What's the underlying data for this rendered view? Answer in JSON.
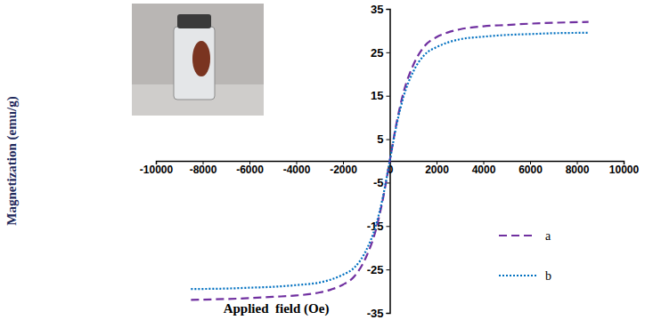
{
  "chart_data": {
    "type": "line",
    "x_label": "Applied  field (Oe)",
    "y_label": "Magnetization (emu/g)",
    "x": [
      -8500,
      -7000,
      -6000,
      -5000,
      -4000,
      -3000,
      -2500,
      -2000,
      -1500,
      -1000,
      -600,
      -300,
      0,
      300,
      600,
      1000,
      1500,
      2000,
      2500,
      3000,
      4000,
      5000,
      6000,
      7000,
      8500
    ],
    "series": [
      {
        "name": "a",
        "color": "#7030a0",
        "line_style": "dashed",
        "values": [
          -32,
          -31.8,
          -31.6,
          -31.3,
          -31,
          -30.3,
          -29.6,
          -28.5,
          -26.5,
          -22,
          -16,
          -9,
          0,
          9,
          16,
          22,
          26.5,
          28.5,
          29.6,
          30.3,
          31,
          31.3,
          31.6,
          31.8,
          32
        ]
      },
      {
        "name": "b",
        "color": "#0070c0",
        "line_style": "dotted",
        "values": [
          -29.5,
          -29.4,
          -29.2,
          -29,
          -28.6,
          -28,
          -27.3,
          -26.2,
          -24.5,
          -20.5,
          -15,
          -8.5,
          0,
          8.5,
          15,
          20.5,
          24.5,
          26.2,
          27.3,
          28,
          28.6,
          29,
          29.2,
          29.4,
          29.5
        ]
      }
    ],
    "xlim": [
      -10000,
      10000
    ],
    "xticks": [
      -10000,
      -8000,
      -6000,
      -4000,
      -2000,
      0,
      2000,
      4000,
      6000,
      8000,
      10000
    ],
    "ylim": [
      -35,
      35
    ],
    "yticks": [
      -35,
      -25,
      -15,
      -5,
      5,
      15,
      25,
      35
    ],
    "grid": false,
    "legend": "lower right"
  }
}
